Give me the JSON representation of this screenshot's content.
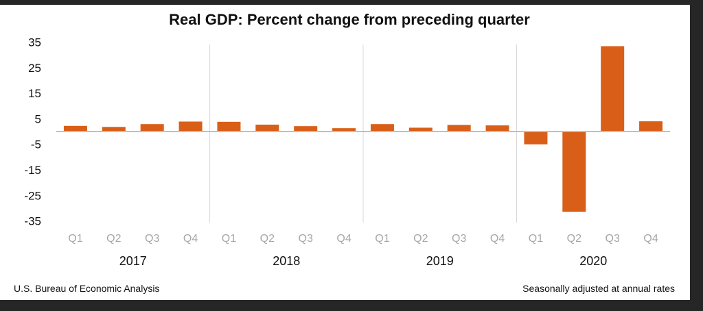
{
  "chart_data": {
    "type": "bar",
    "title": "Real GDP:  Percent change from preceding quarter",
    "xlabel": "",
    "ylabel": "",
    "ylim": [
      -35,
      35
    ],
    "yticks": [
      35,
      25,
      15,
      5,
      -5,
      -15,
      -25,
      -35
    ],
    "grid": false,
    "legend": "none",
    "groups": [
      {
        "year": "2017",
        "quarters": [
          "Q1",
          "Q2",
          "Q3",
          "Q4"
        ]
      },
      {
        "year": "2018",
        "quarters": [
          "Q1",
          "Q2",
          "Q3",
          "Q4"
        ]
      },
      {
        "year": "2019",
        "quarters": [
          "Q1",
          "Q2",
          "Q3",
          "Q4"
        ]
      },
      {
        "year": "2020",
        "quarters": [
          "Q1",
          "Q2",
          "Q3",
          "Q4"
        ]
      }
    ],
    "categories": [
      "2017 Q1",
      "2017 Q2",
      "2017 Q3",
      "2017 Q4",
      "2018 Q1",
      "2018 Q2",
      "2018 Q3",
      "2018 Q4",
      "2019 Q1",
      "2019 Q2",
      "2019 Q3",
      "2019 Q4",
      "2020 Q1",
      "2020 Q2",
      "2020 Q3",
      "2020 Q4"
    ],
    "series": [
      {
        "name": "Real GDP percent change",
        "color": "#d95f18",
        "values": [
          2.2,
          1.8,
          2.9,
          3.9,
          3.8,
          2.7,
          2.1,
          1.3,
          2.9,
          1.5,
          2.6,
          2.4,
          -5.0,
          -31.4,
          33.4,
          4.0
        ]
      }
    ],
    "source": "U.S. Bureau of Economic Analysis",
    "note": "Seasonally adjusted at annual rates"
  },
  "colors": {
    "bar": "#d95f18",
    "axis": "#bfbfbf",
    "separator": "#d9d9d9",
    "quarter_label": "#a6a6a6",
    "text": "#111111"
  }
}
